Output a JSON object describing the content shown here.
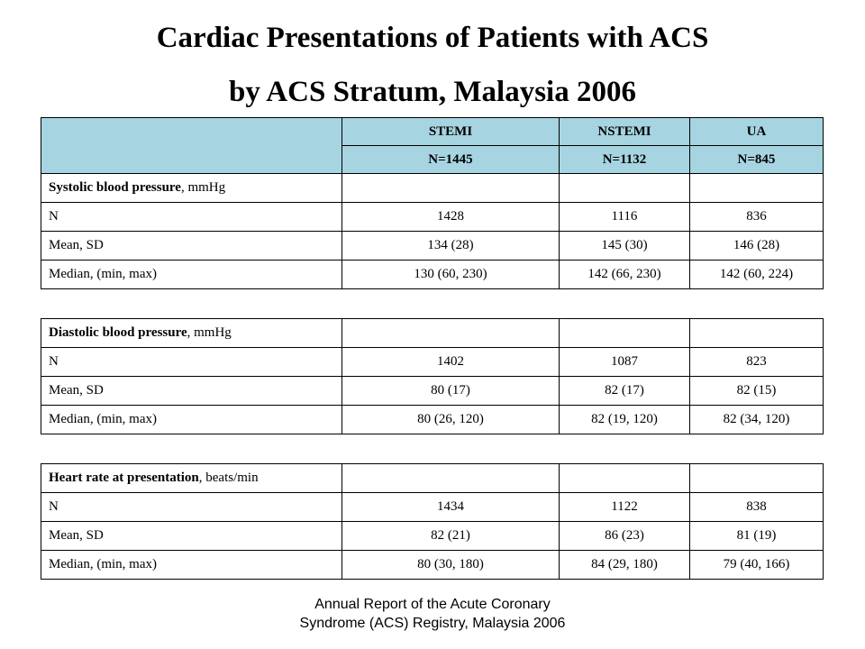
{
  "title": {
    "line1": "Cardiac Presentations of Patients with ACS",
    "line2": "by ACS Stratum, Malaysia 2006"
  },
  "header": {
    "groups": [
      "STEMI",
      "NSTEMI",
      "UA"
    ],
    "counts": [
      "N=1445",
      "N=1132",
      "N=845"
    ]
  },
  "sections": [
    {
      "name_bold": "Systolic blood pressure",
      "unit": ", mmHg",
      "rows": [
        {
          "label": "N",
          "values": [
            "1428",
            "1116",
            "836"
          ]
        },
        {
          "label": "Mean, SD",
          "values": [
            "134 (28)",
            "145 (30)",
            "146 (28)"
          ]
        },
        {
          "label": "Median, (min, max)",
          "values": [
            "130 (60, 230)",
            "142 (66, 230)",
            "142 (60, 224)"
          ]
        }
      ]
    },
    {
      "name_bold": "Diastolic blood pressure",
      "unit": ", mmHg",
      "rows": [
        {
          "label": "N",
          "values": [
            "1402",
            "1087",
            "823"
          ]
        },
        {
          "label": "Mean, SD",
          "values": [
            "80 (17)",
            "82 (17)",
            "82 (15)"
          ]
        },
        {
          "label": "Median, (min, max)",
          "values": [
            "80 (26, 120)",
            "82 (19, 120)",
            "82 (34, 120)"
          ]
        }
      ]
    },
    {
      "name_bold": "Heart rate at presentation",
      "unit": ", beats/min",
      "rows": [
        {
          "label": "N",
          "values": [
            "1434",
            "1122",
            "838"
          ]
        },
        {
          "label": "Mean, SD",
          "values": [
            "82 (21)",
            "86 (23)",
            "81 (19)"
          ]
        },
        {
          "label": "Median, (min, max)",
          "values": [
            "80 (30, 180)",
            "84 (29, 180)",
            "79 (40, 166)"
          ]
        }
      ]
    }
  ],
  "footer": {
    "line1": "Annual Report of the Acute Coronary",
    "line2": "Syndrome (ACS) Registry, Malaysia 2006"
  },
  "colors": {
    "header_fill": "#a6d4e0"
  }
}
